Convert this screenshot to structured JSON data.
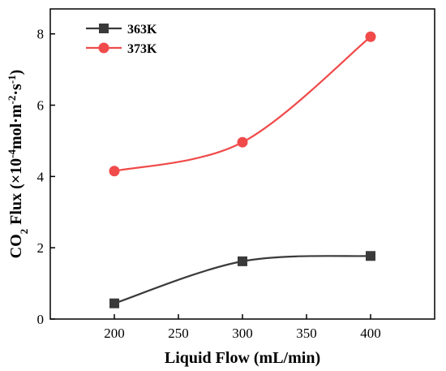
{
  "chart_data": {
    "type": "line",
    "xlabel": "Liquid Flow (mL/min)",
    "ylabel": {
      "prefix": "CO",
      "sub": "2",
      "mid": " Flux (×10",
      "exp1": "-4",
      "mid2": "mol·m",
      "exp2": "-2",
      "mid3": "·s",
      "exp3": "-1",
      "suffix": ")"
    },
    "xlim": [
      150,
      450
    ],
    "ylim": [
      0,
      8.7
    ],
    "xticks": [
      200,
      250,
      300,
      350,
      400
    ],
    "yticks": [
      0,
      2,
      4,
      6,
      8
    ],
    "grid": false,
    "legend_position": "top-left",
    "series": [
      {
        "name": "363K",
        "color": "#3a3a3a",
        "marker": "square",
        "x": [
          200,
          300,
          400
        ],
        "y": [
          0.44,
          1.62,
          1.77
        ]
      },
      {
        "name": "373K",
        "color": "#f04a4a",
        "marker": "circle",
        "x": [
          200,
          300,
          400
        ],
        "y": [
          4.15,
          4.96,
          7.92
        ]
      }
    ]
  }
}
